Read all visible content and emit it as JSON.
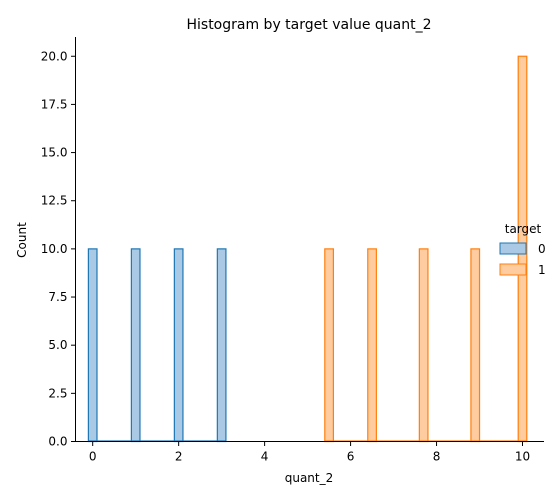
{
  "chart_data": {
    "type": "bar",
    "title": "Histogram by target value quant_2",
    "xlabel": "quant_2",
    "ylabel": "Count",
    "xlim": [
      -0.4,
      10.5
    ],
    "ylim": [
      0,
      21
    ],
    "x_ticks": [
      0,
      2,
      4,
      6,
      8,
      10
    ],
    "y_ticks": [
      0.0,
      2.5,
      5.0,
      7.5,
      10.0,
      12.5,
      15.0,
      17.5,
      20.0
    ],
    "x_tick_labels": [
      "0",
      "2",
      "4",
      "6",
      "8",
      "10"
    ],
    "y_tick_labels": [
      "0.0",
      "2.5",
      "5.0",
      "7.5",
      "10.0",
      "12.5",
      "15.0",
      "17.5",
      "20.0"
    ],
    "bin_width": 0.2,
    "grid": false,
    "legend": {
      "title": "target",
      "placement": "center-right",
      "entries": [
        "0",
        "1"
      ]
    },
    "series": [
      {
        "name": "0",
        "color": "#1f77b4",
        "fill": "#a9c9e4",
        "bars": [
          {
            "x": 0.0,
            "count": 10
          },
          {
            "x": 1.0,
            "count": 10
          },
          {
            "x": 2.0,
            "count": 10
          },
          {
            "x": 3.0,
            "count": 10
          }
        ]
      },
      {
        "name": "1",
        "color": "#ff7f0e",
        "fill": "#ffcc9f",
        "bars": [
          {
            "x": 5.5,
            "count": 10
          },
          {
            "x": 6.5,
            "count": 10
          },
          {
            "x": 7.7,
            "count": 10
          },
          {
            "x": 8.9,
            "count": 10
          },
          {
            "x": 10.0,
            "count": 20
          }
        ]
      }
    ]
  }
}
